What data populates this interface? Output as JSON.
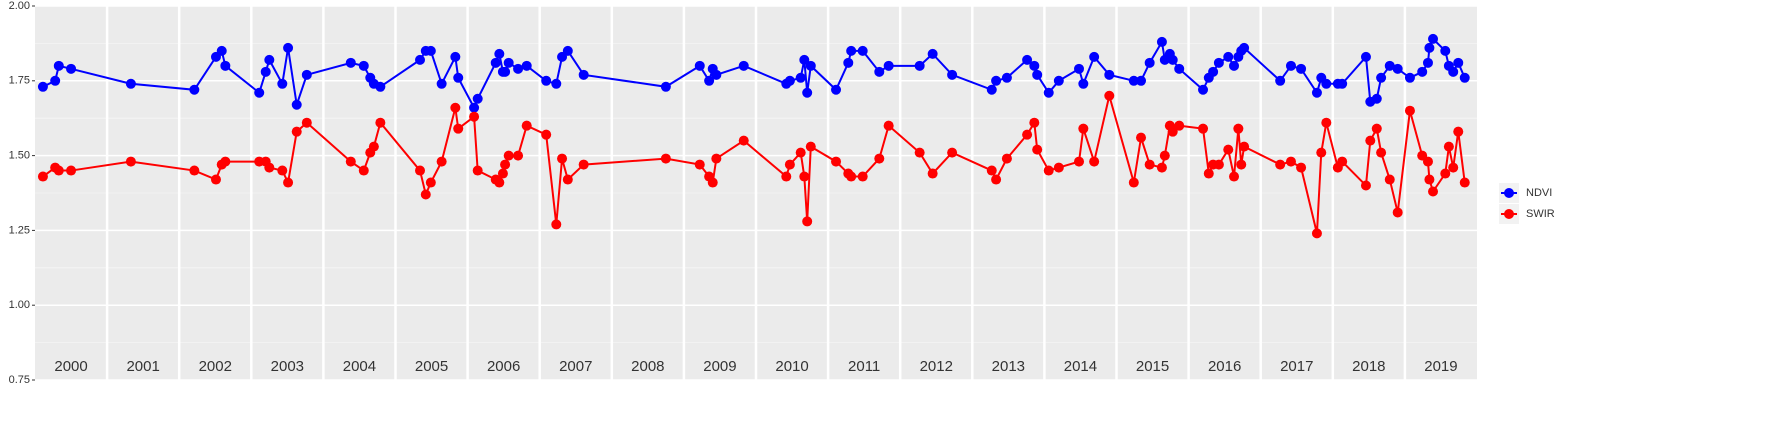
{
  "chart_data": {
    "type": "line",
    "x": [
      2000.11,
      2000.28,
      2000.33,
      2000.5,
      2001.33,
      2002.21,
      2002.51,
      2002.59,
      2002.64,
      2003.11,
      2003.2,
      2003.25,
      2003.43,
      2003.51,
      2003.63,
      2003.77,
      2004.38,
      2004.56,
      2004.65,
      2004.7,
      2004.79,
      2005.34,
      2005.42,
      2005.49,
      2005.64,
      2005.83,
      2005.87,
      2006.09,
      2006.14,
      2006.39,
      2006.44,
      2006.49,
      2006.52,
      2006.57,
      2006.7,
      2006.82,
      2007.09,
      2007.23,
      2007.31,
      2007.39,
      2007.61,
      2008.75,
      2009.22,
      2009.35,
      2009.4,
      2009.45,
      2009.83,
      2010.42,
      2010.47,
      2010.62,
      2010.67,
      2010.71,
      2010.76,
      2011.11,
      2011.28,
      2011.32,
      2011.48,
      2011.71,
      2011.84,
      2012.27,
      2012.45,
      2012.72,
      2013.27,
      2013.33,
      2013.48,
      2013.76,
      2013.86,
      2013.9,
      2014.06,
      2014.2,
      2014.48,
      2014.54,
      2014.69,
      2014.9,
      2015.24,
      2015.34,
      2015.46,
      2015.63,
      2015.67,
      2015.74,
      2015.78,
      2015.87,
      2016.2,
      2016.28,
      2016.34,
      2016.42,
      2016.55,
      2016.63,
      2016.69,
      2016.73,
      2016.77,
      2017.27,
      2017.42,
      2017.56,
      2017.78,
      2017.84,
      2017.91,
      2018.07,
      2018.13,
      2018.46,
      2018.52,
      2018.61,
      2018.67,
      2018.79,
      2018.9,
      2019.07,
      2019.24,
      2019.32,
      2019.34,
      2019.39,
      2019.56,
      2019.61,
      2019.67,
      2019.74,
      2019.83
    ],
    "series": [
      {
        "name": "NDVI",
        "color": "#0000ff",
        "values": [
          1.73,
          1.75,
          1.8,
          1.79,
          1.74,
          1.72,
          1.83,
          1.85,
          1.8,
          1.71,
          1.78,
          1.82,
          1.74,
          1.86,
          1.67,
          1.77,
          1.81,
          1.8,
          1.76,
          1.74,
          1.73,
          1.82,
          1.85,
          1.85,
          1.74,
          1.83,
          1.76,
          1.66,
          1.69,
          1.81,
          1.84,
          1.78,
          1.78,
          1.81,
          1.79,
          1.8,
          1.75,
          1.74,
          1.83,
          1.85,
          1.77,
          1.73,
          1.8,
          1.75,
          1.79,
          1.77,
          1.8,
          1.74,
          1.75,
          1.76,
          1.82,
          1.71,
          1.8,
          1.72,
          1.81,
          1.85,
          1.85,
          1.78,
          1.8,
          1.8,
          1.84,
          1.77,
          1.72,
          1.75,
          1.76,
          1.82,
          1.8,
          1.77,
          1.71,
          1.75,
          1.79,
          1.74,
          1.83,
          1.77,
          1.75,
          1.75,
          1.81,
          1.88,
          1.82,
          1.84,
          1.82,
          1.79,
          1.72,
          1.76,
          1.78,
          1.81,
          1.83,
          1.8,
          1.83,
          1.85,
          1.86,
          1.75,
          1.8,
          1.79,
          1.71,
          1.76,
          1.74,
          1.74,
          1.74,
          1.83,
          1.68,
          1.69,
          1.76,
          1.8,
          1.79,
          1.76,
          1.78,
          1.81,
          1.86,
          1.89,
          1.85,
          1.8,
          1.78,
          1.81,
          1.76
        ]
      },
      {
        "name": "SWIR",
        "color": "#ff0000",
        "values": [
          1.43,
          1.46,
          1.45,
          1.45,
          1.48,
          1.45,
          1.42,
          1.47,
          1.48,
          1.48,
          1.48,
          1.46,
          1.45,
          1.41,
          1.58,
          1.61,
          1.48,
          1.45,
          1.51,
          1.53,
          1.61,
          1.45,
          1.37,
          1.41,
          1.48,
          1.66,
          1.59,
          1.63,
          1.45,
          1.42,
          1.41,
          1.44,
          1.47,
          1.5,
          1.5,
          1.6,
          1.57,
          1.27,
          1.49,
          1.42,
          1.47,
          1.49,
          1.47,
          1.43,
          1.41,
          1.49,
          1.55,
          1.43,
          1.47,
          1.51,
          1.43,
          1.28,
          1.53,
          1.48,
          1.44,
          1.43,
          1.43,
          1.49,
          1.6,
          1.51,
          1.44,
          1.51,
          1.45,
          1.42,
          1.49,
          1.57,
          1.61,
          1.52,
          1.45,
          1.46,
          1.48,
          1.59,
          1.48,
          1.7,
          1.41,
          1.56,
          1.47,
          1.46,
          1.5,
          1.6,
          1.58,
          1.6,
          1.59,
          1.44,
          1.47,
          1.47,
          1.52,
          1.43,
          1.59,
          1.47,
          1.53,
          1.47,
          1.48,
          1.46,
          1.24,
          1.51,
          1.61,
          1.46,
          1.48,
          1.4,
          1.55,
          1.59,
          1.51,
          1.42,
          1.31,
          1.65,
          1.5,
          1.48,
          1.42,
          1.38,
          1.44,
          1.53,
          1.46,
          1.58,
          1.41
        ]
      }
    ],
    "xlim": [
      2000,
      2020
    ],
    "xticks": [
      2000,
      2001,
      2002,
      2003,
      2004,
      2005,
      2006,
      2007,
      2008,
      2009,
      2010,
      2011,
      2012,
      2013,
      2014,
      2015,
      2016,
      2017,
      2018,
      2019
    ],
    "ylim": [
      0.75,
      2.0
    ],
    "yticks": [
      0.75,
      {
        "value": 1.0,
        "label": "1.00"
      },
      1.25,
      {
        "value": 1.5,
        "label": "1.50"
      },
      1.75,
      {
        "value": 2.0,
        "label": "2.00"
      }
    ],
    "grid": true,
    "legend": "right"
  }
}
